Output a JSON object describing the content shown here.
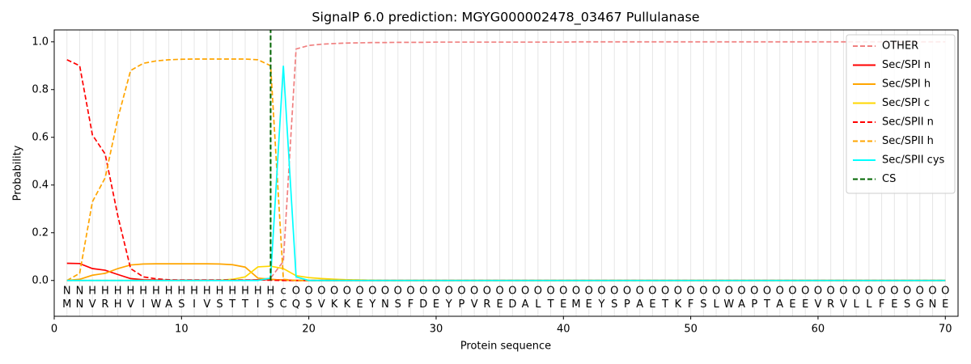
{
  "chart_data": {
    "type": "line",
    "title": "SignalP 6.0 prediction: MGYG000002478_03467 Pullulanase",
    "xlabel": "Protein sequence",
    "ylabel": "Probability",
    "xlim": [
      0,
      71
    ],
    "ylim": [
      -0.15,
      1.05
    ],
    "xticks": [
      0,
      10,
      20,
      30,
      40,
      50,
      60,
      70
    ],
    "yticks": [
      {
        "value": 0,
        "label": "0.0"
      },
      {
        "value": 0.2,
        "label": "0.2"
      },
      {
        "value": 0.4,
        "label": "0.4"
      },
      {
        "value": 0.6,
        "label": "0.6"
      },
      {
        "value": 0.8,
        "label": "0.8"
      },
      {
        "value": 1,
        "label": "1.0"
      }
    ],
    "legend": "upper right",
    "x": [
      1,
      2,
      3,
      4,
      5,
      6,
      7,
      8,
      9,
      10,
      11,
      12,
      13,
      14,
      15,
      16,
      17,
      18,
      19,
      20,
      21,
      22,
      23,
      24,
      25,
      26,
      27,
      28,
      29,
      30,
      31,
      32,
      33,
      34,
      35,
      36,
      37,
      38,
      39,
      40,
      41,
      42,
      43,
      44,
      45,
      46,
      47,
      48,
      49,
      50,
      51,
      52,
      53,
      54,
      55,
      56,
      57,
      58,
      59,
      60,
      61,
      62,
      63,
      64,
      65,
      66,
      67,
      68,
      69,
      70
    ],
    "sequence": [
      "M",
      "N",
      "V",
      "R",
      "H",
      "V",
      "I",
      "W",
      "A",
      "S",
      "I",
      "V",
      "S",
      "T",
      "T",
      "I",
      "S",
      "C",
      "Q",
      "S",
      "V",
      "K",
      "K",
      "E",
      "Y",
      "N",
      "S",
      "F",
      "D",
      "E",
      "Y",
      "P",
      "V",
      "R",
      "E",
      "D",
      "A",
      "L",
      "T",
      "E",
      "M",
      "E",
      "Y",
      "S",
      "P",
      "A",
      "E",
      "T",
      "K",
      "F",
      "S",
      "L",
      "W",
      "A",
      "P",
      "T",
      "A",
      "E",
      "E",
      "V",
      "R",
      "V",
      "L",
      "L",
      "F",
      "E",
      "S",
      "G",
      "N",
      "E"
    ],
    "regions": [
      "N",
      "N",
      "H",
      "H",
      "H",
      "H",
      "H",
      "H",
      "H",
      "H",
      "H",
      "H",
      "H",
      "H",
      "H",
      "H",
      "H",
      "c",
      "O",
      "O",
      "O",
      "O",
      "O",
      "O",
      "O",
      "O",
      "O",
      "O",
      "O",
      "O",
      "O",
      "O",
      "O",
      "O",
      "O",
      "O",
      "O",
      "O",
      "O",
      "O",
      "O",
      "O",
      "O",
      "O",
      "O",
      "O",
      "O",
      "O",
      "O",
      "O",
      "O",
      "O",
      "O",
      "O",
      "O",
      "O",
      "O",
      "O",
      "O",
      "O",
      "O",
      "O",
      "O",
      "O",
      "O",
      "O",
      "O",
      "O",
      "O",
      "O"
    ],
    "region_colors": {
      "N": "#ff0000",
      "H": "#ffa500",
      "c": "#00e5ee",
      "O": "#808080"
    },
    "series": [
      {
        "name": "OTHER",
        "color": "#f08080",
        "dashed": true,
        "values": [
          0,
          0,
          0,
          0,
          0,
          0,
          0,
          0,
          0,
          0,
          0,
          0,
          0,
          0,
          0,
          0.002,
          0.01,
          0.08,
          0.97,
          0.985,
          0.99,
          0.993,
          0.995,
          0.996,
          0.997,
          0.997,
          0.998,
          0.998,
          0.998,
          0.999,
          0.999,
          0.999,
          0.999,
          0.999,
          0.999,
          0.999,
          0.999,
          0.999,
          0.999,
          0.999,
          1,
          1,
          1,
          1,
          1,
          1,
          1,
          1,
          1,
          1,
          1,
          1,
          1,
          1,
          1,
          1,
          1,
          1,
          1,
          1,
          1,
          1,
          1,
          1,
          1,
          1,
          1,
          1,
          1,
          1
        ]
      },
      {
        "name": "Sec/SPI n",
        "color": "#ff0000",
        "dashed": false,
        "values": [
          0.072,
          0.071,
          0.05,
          0.043,
          0.025,
          0.008,
          0.003,
          0.002,
          0.001,
          0.001,
          0.001,
          0.001,
          0.001,
          0.001,
          0.001,
          0.002,
          0.004,
          0.002,
          0,
          0,
          0,
          0,
          0,
          0,
          0,
          0,
          0,
          0,
          0,
          0,
          0,
          0,
          0,
          0,
          0,
          0,
          0,
          0,
          0,
          0,
          0,
          0,
          0,
          0,
          0,
          0,
          0,
          0,
          0,
          0,
          0,
          0,
          0,
          0,
          0,
          0,
          0,
          0,
          0,
          0,
          0,
          0,
          0,
          0,
          0,
          0,
          0,
          0,
          0,
          0
        ]
      },
      {
        "name": "Sec/SPI h",
        "color": "#ffa500",
        "dashed": false,
        "values": [
          0,
          0.005,
          0.022,
          0.03,
          0.05,
          0.065,
          0.069,
          0.07,
          0.07,
          0.07,
          0.07,
          0.07,
          0.069,
          0.066,
          0.056,
          0.01,
          0.005,
          0.001,
          0,
          0,
          0,
          0,
          0,
          0,
          0,
          0,
          0,
          0,
          0,
          0,
          0,
          0,
          0,
          0,
          0,
          0,
          0,
          0,
          0,
          0,
          0,
          0,
          0,
          0,
          0,
          0,
          0,
          0,
          0,
          0,
          0,
          0,
          0,
          0,
          0,
          0,
          0,
          0,
          0,
          0,
          0,
          0,
          0,
          0,
          0,
          0,
          0,
          0,
          0,
          0
        ]
      },
      {
        "name": "Sec/SPI c",
        "color": "#ffd700",
        "dashed": false,
        "values": [
          0,
          0,
          0,
          0,
          0,
          0,
          0,
          0,
          0,
          0,
          0,
          0,
          0.001,
          0.005,
          0.015,
          0.057,
          0.06,
          0.05,
          0.02,
          0.012,
          0.008,
          0.005,
          0.003,
          0.002,
          0.001,
          0,
          0,
          0,
          0,
          0,
          0,
          0,
          0,
          0,
          0,
          0,
          0,
          0,
          0,
          0,
          0,
          0,
          0,
          0,
          0,
          0,
          0,
          0,
          0,
          0,
          0,
          0,
          0,
          0,
          0,
          0,
          0,
          0,
          0,
          0,
          0,
          0,
          0,
          0,
          0,
          0,
          0,
          0,
          0,
          0
        ]
      },
      {
        "name": "Sec/SPII n",
        "color": "#ff0000",
        "dashed": true,
        "values": [
          0.925,
          0.9,
          0.61,
          0.53,
          0.27,
          0.05,
          0.015,
          0.007,
          0.003,
          0.002,
          0.002,
          0.002,
          0.002,
          0.002,
          0.002,
          0.002,
          0.001,
          0,
          0,
          0,
          0,
          0,
          0,
          0,
          0,
          0,
          0,
          0,
          0,
          0,
          0,
          0,
          0,
          0,
          0,
          0,
          0,
          0,
          0,
          0,
          0,
          0,
          0,
          0,
          0,
          0,
          0,
          0,
          0,
          0,
          0,
          0,
          0,
          0,
          0,
          0,
          0,
          0,
          0,
          0,
          0,
          0,
          0,
          0,
          0,
          0,
          0,
          0,
          0,
          0
        ]
      },
      {
        "name": "Sec/SPII h",
        "color": "#ffa500",
        "dashed": true,
        "values": [
          0,
          0.03,
          0.33,
          0.43,
          0.68,
          0.88,
          0.91,
          0.92,
          0.925,
          0.927,
          0.928,
          0.928,
          0.928,
          0.928,
          0.928,
          0.925,
          0.9,
          0.005,
          0,
          0,
          0,
          0,
          0,
          0,
          0,
          0,
          0,
          0,
          0,
          0,
          0,
          0,
          0,
          0,
          0,
          0,
          0,
          0,
          0,
          0,
          0,
          0,
          0,
          0,
          0,
          0,
          0,
          0,
          0,
          0,
          0,
          0,
          0,
          0,
          0,
          0,
          0,
          0,
          0,
          0,
          0,
          0,
          0,
          0,
          0,
          0,
          0,
          0,
          0,
          0
        ]
      },
      {
        "name": "Sec/SPII cys",
        "color": "#00ffff",
        "dashed": false,
        "values": [
          0,
          0,
          0,
          0,
          0,
          0,
          0,
          0,
          0,
          0,
          0,
          0,
          0,
          0,
          0,
          0,
          0.01,
          0.9,
          0.015,
          0,
          0,
          0,
          0,
          0,
          0,
          0,
          0,
          0,
          0,
          0,
          0,
          0,
          0,
          0,
          0,
          0,
          0,
          0,
          0,
          0,
          0,
          0,
          0,
          0,
          0,
          0,
          0,
          0,
          0,
          0,
          0,
          0,
          0,
          0,
          0,
          0,
          0,
          0,
          0,
          0,
          0,
          0,
          0,
          0,
          0,
          0,
          0,
          0,
          0,
          0
        ]
      },
      {
        "name": "CS",
        "color": "#006400",
        "dashed": true,
        "x": 17
      }
    ]
  }
}
